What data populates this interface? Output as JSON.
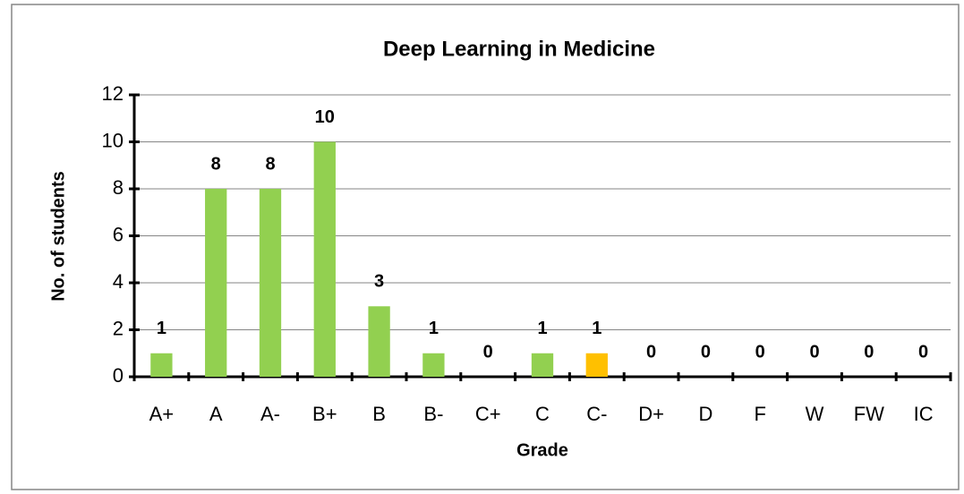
{
  "chart_data": {
    "type": "bar",
    "title": "Deep Learning in Medicine",
    "x_label": "Grade",
    "y_label": "No. of students",
    "categories": [
      "A+",
      "A",
      "A-",
      "B+",
      "B",
      "B-",
      "C+",
      "C",
      "C-",
      "D+",
      "D",
      "F",
      "W",
      "FW",
      "IC"
    ],
    "values": [
      1,
      8,
      8,
      10,
      3,
      1,
      0,
      1,
      1,
      0,
      0,
      0,
      0,
      0,
      0
    ],
    "colors": [
      "#92d050",
      "#92d050",
      "#92d050",
      "#92d050",
      "#92d050",
      "#92d050",
      "#92d050",
      "#92d050",
      "#ffc000",
      "#92d050",
      "#92d050",
      "#92d050",
      "#92d050",
      "#92d050",
      "#92d050"
    ],
    "ylim": [
      0,
      12
    ],
    "yticks": [
      0,
      2,
      4,
      6,
      8,
      10,
      12
    ],
    "grid": true
  }
}
